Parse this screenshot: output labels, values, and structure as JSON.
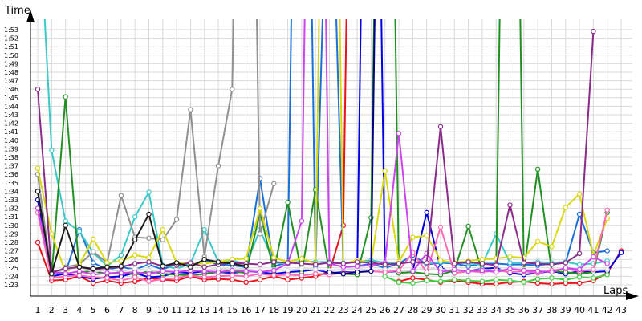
{
  "chart_data": {
    "type": "line",
    "title": "",
    "ylabel": "Time",
    "xlabel": "Laps",
    "grid": true,
    "y_ticks": [
      "1:23",
      "1:24",
      "1:25",
      "1:26",
      "1:27",
      "1:28",
      "1:29",
      "1:30",
      "1:31",
      "1:32",
      "1:33",
      "1:34",
      "1:35",
      "1:36",
      "1:37",
      "1:38",
      "1:39",
      "1:40",
      "1:41",
      "1:42",
      "1:43",
      "1:44",
      "1:45",
      "1:46",
      "1:47",
      "1:48",
      "1:49",
      "1:50",
      "1:51",
      "1:52",
      "1:53"
    ],
    "x_ticks": [
      "1",
      "2",
      "3",
      "4",
      "5",
      "6",
      "7",
      "8",
      "9",
      "10",
      "11",
      "12",
      "13",
      "14",
      "15",
      "16",
      "17",
      "18",
      "19",
      "20",
      "21",
      "22",
      "23",
      "24",
      "25",
      "26",
      "27",
      "28",
      "29",
      "30",
      "31",
      "32",
      "33",
      "34",
      "35",
      "36",
      "37",
      "38",
      "39",
      "40",
      "41",
      "42",
      "43"
    ],
    "ylim_seconds": [
      82,
      115
    ],
    "series": [
      {
        "color": "#e8131b",
        "values": [
          88,
          83.5,
          83.6,
          84,
          83.2,
          83.5,
          83.2,
          83.4,
          83.8,
          83.6,
          83.5,
          84,
          83.6,
          83.7,
          83.6,
          83.3,
          83.6,
          84,
          83.6,
          83.8,
          84,
          84.5,
          90,
          200,
          null,
          null,
          83.4,
          83.8,
          83.6,
          83.3,
          83.5,
          83.3,
          83.1,
          83.1,
          83.3,
          83.4,
          83.2,
          83.1,
          83.2,
          83.2,
          83.5,
          84.4,
          87
        ]
      },
      {
        "color": "#0000e0",
        "values": [
          93,
          84,
          84.3,
          84,
          83.7,
          83.9,
          84,
          84.4,
          83.9,
          84,
          84.5,
          84.4,
          84.6,
          84.5,
          84.4,
          84.6,
          84.5,
          84.3,
          84.5,
          84.6,
          84.8,
          84.4,
          84.5,
          84.5,
          200,
          84.5,
          84.6,
          84.7,
          91.5,
          85,
          84.4,
          84.6,
          84.9,
          85,
          84.4,
          84.2,
          84.4,
          84.6,
          84.3,
          84.6,
          84.5,
          84.6,
          86.8
        ]
      },
      {
        "color": "#1b70d8",
        "values": [
          94,
          84.5,
          84.4,
          89.5,
          85.6,
          84.8,
          85.1,
          84.8,
          85.4,
          84.8,
          85.5,
          85.3,
          85.9,
          85.4,
          85.3,
          85.1,
          95.5,
          85.2,
          85.6,
          200,
          85.2,
          142.8,
          85.1,
          85.2,
          85.5,
          85,
          85.5,
          86.5,
          85.4,
          85.6,
          85.5,
          85.2,
          85.5,
          85.5,
          85.4,
          85.4,
          85.3,
          85.5,
          85.6,
          91.3,
          86.8,
          87,
          null
        ]
      },
      {
        "color": "#3ac8c8",
        "values": [
          130,
          98.8,
          90.5,
          89.3,
          86.8,
          85.2,
          86.5,
          91,
          93.9,
          85.3,
          84.9,
          85.5,
          89.5,
          85.7,
          85.9,
          85.4,
          89.5,
          85.6,
          85.5,
          85.8,
          85.7,
          85.7,
          85.6,
          85.7,
          85.9,
          85.6,
          85.5,
          85.7,
          85.5,
          85.7,
          85.6,
          85.5,
          85.4,
          89,
          85.6,
          85.6,
          85.7,
          85.6,
          85.7,
          85.4,
          85.5,
          85.8,
          null
        ]
      },
      {
        "color": "#238f23",
        "values": [
          94,
          84,
          105.1,
          84.5,
          84.6,
          84.3,
          84.5,
          84.2,
          84.6,
          84.3,
          84.2,
          84.1,
          84.3,
          84.5,
          84.6,
          84.4,
          91.5,
          84.6,
          92.7,
          84.4,
          94.2,
          84.4,
          84.3,
          84.2,
          90.9,
          200,
          84.4,
          84.5,
          84.3,
          84.2,
          84.7,
          89.9,
          84.6,
          84.7,
          200,
          84.6,
          96.6,
          84.6,
          84.5,
          84.3,
          84.5,
          91.5,
          null
        ]
      },
      {
        "color": "#909090",
        "values": [
          96,
          84.2,
          85.1,
          85.4,
          86.9,
          85.6,
          93.5,
          88.6,
          88.5,
          88.3,
          90.7,
          103.6,
          86.3,
          97,
          106,
          200,
          89,
          94.9,
          null,
          null,
          null,
          null,
          null,
          null,
          null,
          null,
          null,
          null,
          null,
          null,
          null,
          null,
          null,
          null,
          null,
          null,
          null,
          null,
          null,
          null,
          null,
          null,
          null
        ]
      },
      {
        "color": "#d8d812",
        "values": [
          96.7,
          89,
          84.5,
          85.4,
          88.4,
          85.6,
          85.8,
          86.5,
          86.2,
          89.5,
          85.6,
          85.5,
          85.5,
          85.7,
          86,
          86.1,
          92,
          86.2,
          85.7,
          86.1,
          85.5,
          200,
          85.5,
          85.9,
          85.6,
          96.4,
          85.7,
          88.6,
          88.8,
          85.9,
          85.6,
          85.8,
          86,
          86.1,
          86.3,
          86.2,
          88.1,
          87.5,
          92.1,
          93.7,
          86.5,
          90.8,
          null
        ]
      },
      {
        "color": "#d8d8d8",
        "values": [
          null,
          84.6,
          84.7,
          85.1,
          84.5,
          84.8,
          84.6,
          84.9,
          84.7,
          84.5,
          84.8,
          84.6,
          84.7,
          84.9,
          84.8,
          84.9,
          84.6,
          84.8,
          84.7,
          84.9,
          84.8,
          84.7,
          84.8,
          84.9,
          84.7,
          84.8,
          84.6,
          84.7,
          84.9,
          84.8,
          84.7,
          84.6,
          84.8,
          84.7,
          84.9,
          84.8,
          84.7,
          84.6,
          84.9,
          84.8,
          84.7,
          84.8,
          null
        ]
      },
      {
        "color": "#ff69b4",
        "values": [
          91.5,
          83.8,
          84,
          84.1,
          83.9,
          83.8,
          83.5,
          83.9,
          83.4,
          83.7,
          83.8,
          84.1,
          83.9,
          84,
          84.1,
          84,
          84.3,
          84.1,
          84.2,
          84.1,
          84.3,
          84.2,
          84.4,
          84.5,
          84.6,
          84.5,
          84.7,
          86.8,
          84.5,
          89.8,
          84.4,
          84.6,
          84.5,
          84.7,
          84.5,
          84.6,
          84.4,
          84.7,
          84.9,
          84.6,
          84.8,
          91.8,
          null
        ]
      },
      {
        "color": "#cc44ee",
        "values": [
          92,
          84.5,
          84.3,
          84.6,
          84.2,
          84.4,
          84.4,
          84.5,
          84.3,
          84.6,
          84.5,
          84.7,
          84.6,
          84.5,
          84.7,
          84.6,
          84.5,
          84.7,
          85.5,
          90.5,
          200,
          85.5,
          85.1,
          85.2,
          85.3,
          85.6,
          100.8,
          84.6,
          86.7,
          84.5,
          84.8,
          84.6,
          84.7,
          84.5,
          84.9,
          84.7,
          84.6,
          84.5,
          85,
          84.8,
          86.3,
          85.5,
          null
        ]
      },
      {
        "color": "#8a2b8a",
        "values": [
          106,
          84.5,
          84.9,
          85.1,
          84.8,
          85,
          85.1,
          85.5,
          85.7,
          85.2,
          85.3,
          85.6,
          85.1,
          85.4,
          85.6,
          85.5,
          85.4,
          85.7,
          85.6,
          85.5,
          85.4,
          85.6,
          85.5,
          85.7,
          85.6,
          85.4,
          85.5,
          85.7,
          85.6,
          101.6,
          85.5,
          85.7,
          85.5,
          85.3,
          92.4,
          85.6,
          85.5,
          85.4,
          85.6,
          86.7,
          112.8,
          null,
          null
        ]
      },
      {
        "color": "#1a1a1a",
        "values": [
          94,
          84.3,
          90,
          85.1,
          84.9,
          85.1,
          85.2,
          88.3,
          91.3,
          85.2,
          85.6,
          85.1,
          86,
          85.7,
          85.5,
          85.2,
          null,
          null,
          null,
          null,
          null,
          null,
          null,
          null,
          null,
          null,
          null,
          null,
          null,
          null,
          null,
          null,
          null,
          null,
          null,
          null,
          null,
          null,
          null,
          null,
          null,
          null,
          null
        ]
      },
      {
        "color": "#000080",
        "values": [
          null,
          null,
          null,
          null,
          null,
          null,
          null,
          null,
          null,
          null,
          null,
          null,
          null,
          null,
          null,
          null,
          null,
          null,
          null,
          null,
          null,
          84.5,
          84.3,
          84.5,
          84.6,
          200,
          null,
          null,
          null,
          null,
          null,
          null,
          null,
          null,
          null,
          null,
          null,
          null,
          null,
          null,
          null,
          null,
          null
        ]
      },
      {
        "color": "#44cc44",
        "values": [
          null,
          null,
          null,
          null,
          null,
          null,
          null,
          null,
          null,
          null,
          null,
          null,
          null,
          null,
          null,
          null,
          null,
          null,
          null,
          null,
          null,
          null,
          null,
          null,
          null,
          84,
          83.3,
          83.2,
          83.5,
          83.4,
          83.6,
          83.5,
          83.4,
          83.6,
          83.5,
          83.3,
          83.7,
          83.8,
          83.6,
          83.9,
          83.8,
          84.2,
          null
        ]
      }
    ]
  }
}
